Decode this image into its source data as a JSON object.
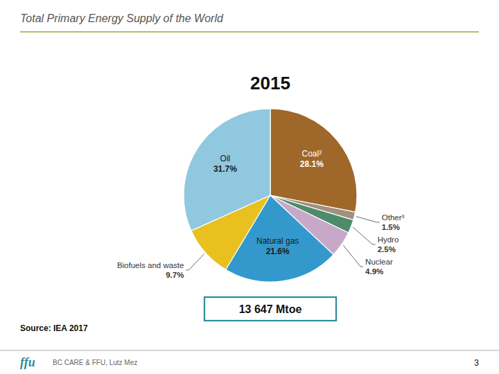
{
  "chart_data": {
    "type": "pie",
    "title": "Total Primary Energy Supply of the World",
    "subtitle": "2015",
    "annotations": [
      "13 647 Mtoe",
      "Source: IEA 2017",
      "ffu",
      "BC CARE & FFU, Lutz Mez",
      "3"
    ],
    "categories": [
      "Coal²",
      "Other³",
      "Hydro",
      "Nuclear",
      "Natural gas",
      "Biofuels and waste",
      "Oil"
    ],
    "values": [
      28.1,
      1.5,
      2.5,
      4.9,
      21.6,
      9.7,
      31.7
    ],
    "value_labels": [
      "28.1%",
      "1.5%",
      "2.5%",
      "4.9%",
      "21.6%",
      "9.7%",
      "31.7%"
    ],
    "colors": [
      "#A0672A",
      "#A09080",
      "#4E8B6A",
      "#C8A8C8",
      "#3399CC",
      "#E8C020",
      "#90C8E0"
    ],
    "data_labels": true
  }
}
